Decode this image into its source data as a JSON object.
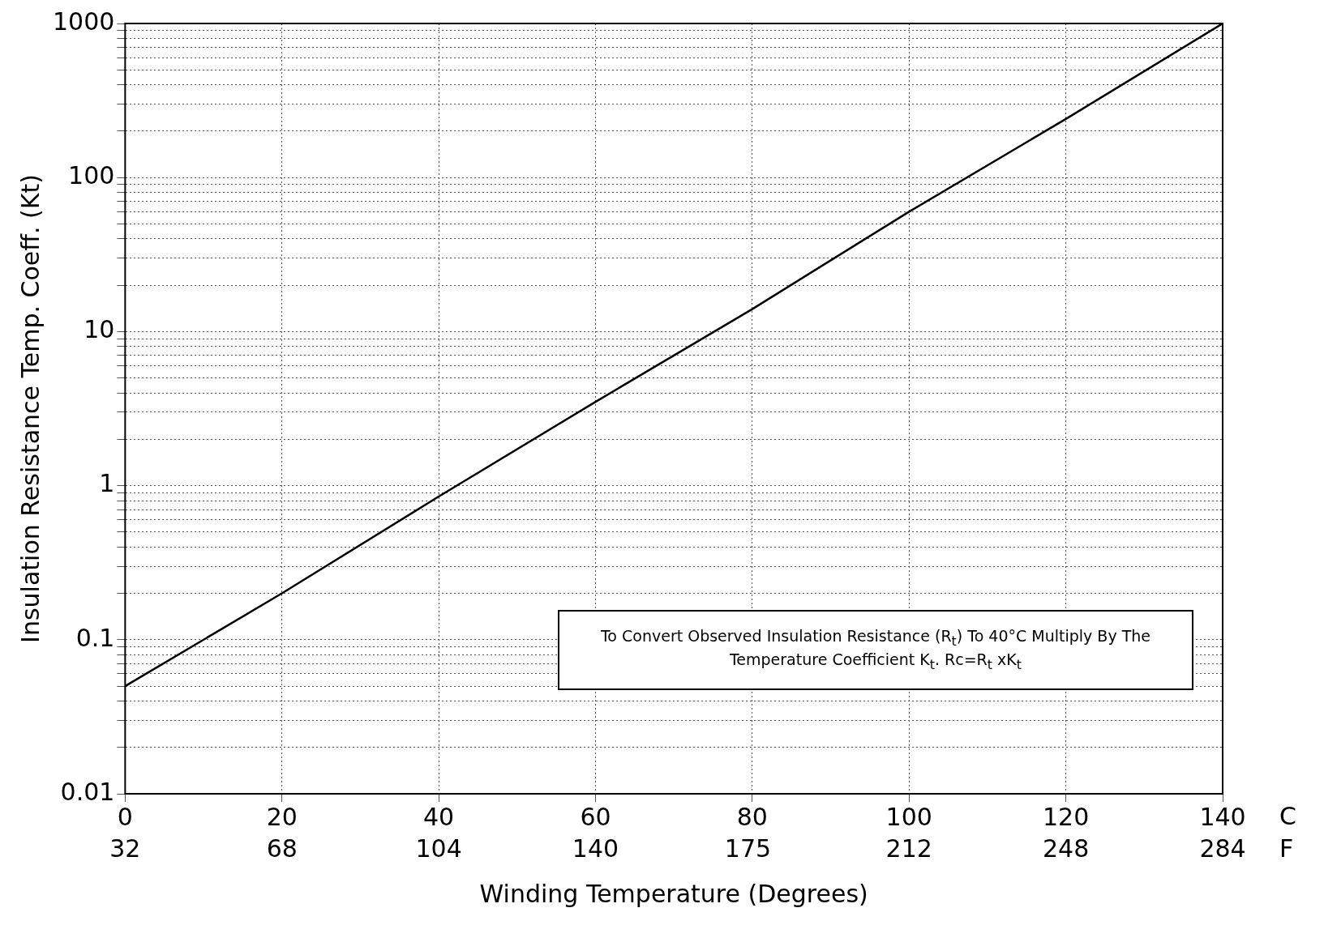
{
  "chart_data": {
    "type": "line",
    "xlabel": "Winding Temperature (Degrees)",
    "ylabel": "Insulation Resistance Temp. Coeff. (Kt)",
    "x": [
      0,
      20,
      40,
      60,
      80,
      100,
      120,
      140
    ],
    "series": [
      {
        "color": "#000000",
        "values": [
          0.05,
          0.2,
          0.85,
          3.5,
          14,
          60,
          240,
          1000
        ]
      }
    ],
    "log": "y",
    "grid": true,
    "marker": "none",
    "line_style": "solid",
    "xlim": [
      0,
      140
    ],
    "xticks": [
      0,
      20,
      40,
      60,
      80,
      100,
      120,
      140
    ],
    "x2lim": [
      32,
      284
    ],
    "x2ticks": [
      32,
      68,
      104,
      140,
      175,
      212,
      248,
      284
    ],
    "ylim": [
      0.01,
      1000
    ],
    "yticks": [
      0.01,
      {
        "value": 0.02,
        "label": null
      },
      {
        "value": 0.03,
        "label": null
      },
      {
        "value": 0.04,
        "label": null
      },
      {
        "value": 0.05,
        "label": null
      },
      {
        "value": 0.06,
        "label": null
      },
      {
        "value": 0.07,
        "label": null
      },
      {
        "value": 0.08,
        "label": null
      },
      {
        "value": 0.09,
        "label": null
      },
      0.1,
      {
        "value": 0.2,
        "label": null
      },
      {
        "value": 0.3,
        "label": null
      },
      {
        "value": 0.4,
        "label": null
      },
      {
        "value": 0.5,
        "label": null
      },
      {
        "value": 0.6,
        "label": null
      },
      {
        "value": 0.7,
        "label": null
      },
      {
        "value": 0.8,
        "label": null
      },
      {
        "value": 0.9,
        "label": null
      },
      1,
      {
        "value": 2,
        "label": null
      },
      {
        "value": 3,
        "label": null
      },
      {
        "value": 4,
        "label": null
      },
      {
        "value": 5,
        "label": null
      },
      {
        "value": 6,
        "label": null
      },
      {
        "value": 7,
        "label": null
      },
      {
        "value": 8,
        "label": null
      },
      {
        "value": 9,
        "label": null
      },
      10,
      {
        "value": 20,
        "label": null
      },
      {
        "value": 30,
        "label": null
      },
      {
        "value": 40,
        "label": null
      },
      {
        "value": 50,
        "label": null
      },
      {
        "value": 60,
        "label": null
      },
      {
        "value": 70,
        "label": null
      },
      {
        "value": 80,
        "label": null
      },
      {
        "value": 90,
        "label": null
      },
      100,
      {
        "value": 200,
        "label": null
      },
      {
        "value": 300,
        "label": null
      },
      {
        "value": 400,
        "label": null
      },
      {
        "value": 500,
        "label": null
      },
      {
        "value": 600,
        "label": null
      },
      {
        "value": 700,
        "label": null
      },
      {
        "value": 800,
        "label": null
      },
      {
        "value": 900,
        "label": null
      },
      1000
    ],
    "annotations": [
      "C",
      "F",
      "To Convert Observed Insulation Resistance (R$_{t}$) To 40°C Multiply By The Temperature Coefficient K$_{t}$. Rc=R$_{t}$ xK$_{t}$"
    ]
  }
}
